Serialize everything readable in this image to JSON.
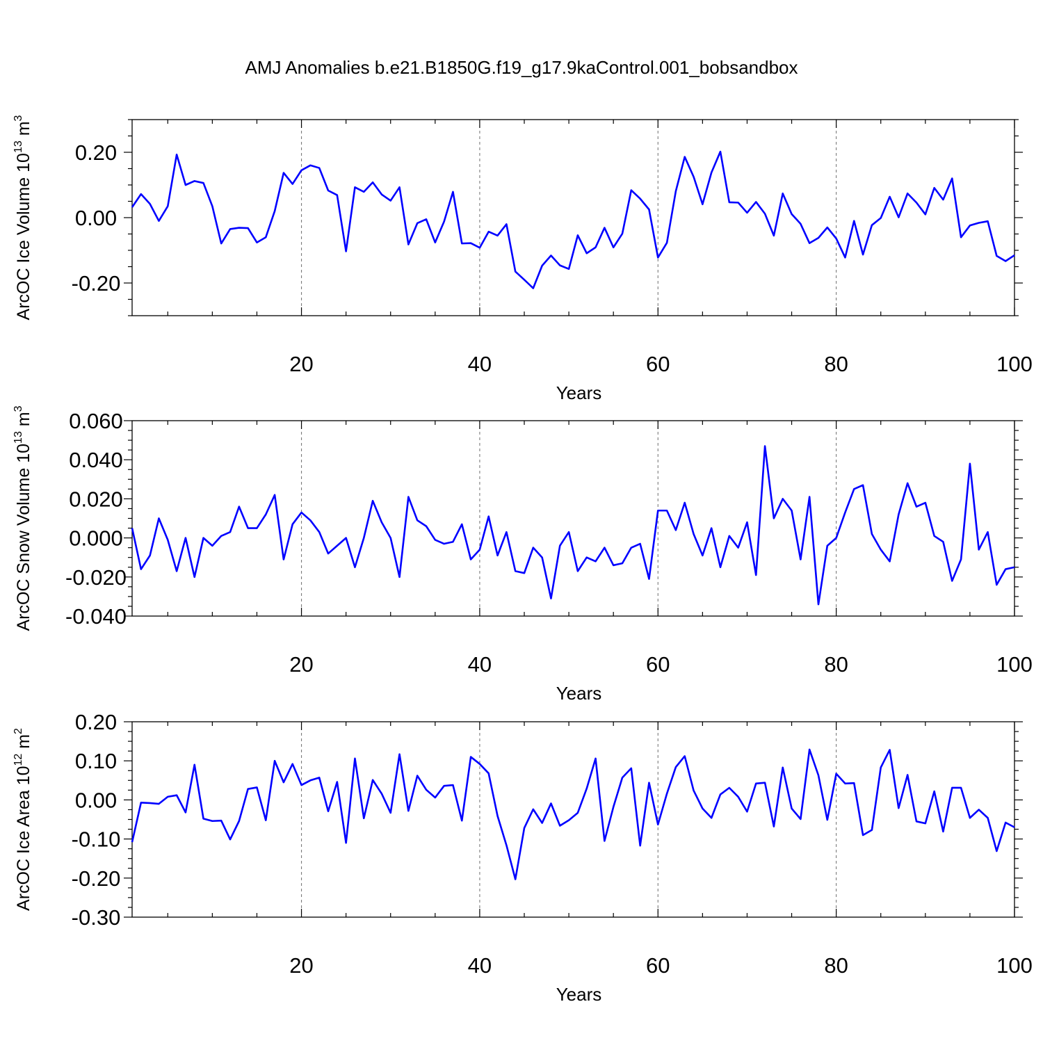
{
  "title": "AMJ Anomalies b.e21.B1850G.f19_g17.9kaControl.001_bobsandbox",
  "colors": {
    "line": "#0000ff",
    "grid": "#7a7a7a"
  },
  "chart_data": [
    {
      "type": "line",
      "ylabel_main": "ArcOC Ice Volume 10",
      "ylabel_exp": "13",
      "ylabel_unit": " m",
      "ylabel_unit_exp": "3",
      "xlabel": "Years",
      "xlim": [
        1,
        100
      ],
      "ylim": [
        -0.3,
        0.3
      ],
      "yticks": [
        -0.2,
        0.0,
        0.2
      ],
      "ytick_labels": [
        "-0.20",
        "0.00",
        "0.20"
      ],
      "xticks": [
        20,
        40,
        60,
        80,
        100
      ],
      "xtick_labels": [
        "20",
        "40",
        "60",
        "80",
        "100"
      ],
      "grid_x": [
        20,
        40,
        60,
        80
      ],
      "x_start": 1,
      "values": [
        0.032,
        0.072,
        0.042,
        -0.01,
        0.035,
        0.193,
        0.1,
        0.112,
        0.106,
        0.035,
        -0.079,
        -0.035,
        -0.031,
        -0.032,
        -0.076,
        -0.06,
        0.02,
        0.137,
        0.103,
        0.145,
        0.16,
        0.152,
        0.083,
        0.069,
        -0.103,
        0.093,
        0.079,
        0.108,
        0.071,
        0.052,
        0.093,
        -0.082,
        -0.017,
        -0.005,
        -0.076,
        -0.012,
        0.079,
        -0.079,
        -0.078,
        -0.092,
        -0.043,
        -0.055,
        -0.02,
        -0.165,
        -0.19,
        -0.216,
        -0.147,
        -0.116,
        -0.146,
        -0.157,
        -0.054,
        -0.109,
        -0.091,
        -0.031,
        -0.091,
        -0.049,
        0.084,
        0.058,
        0.025,
        -0.122,
        -0.077,
        0.081,
        0.186,
        0.125,
        0.041,
        0.138,
        0.202,
        0.047,
        0.046,
        0.015,
        0.048,
        0.012,
        -0.055,
        0.074,
        0.011,
        -0.019,
        -0.078,
        -0.062,
        -0.03,
        -0.064,
        -0.122,
        -0.01,
        -0.113,
        -0.023,
        -0.001,
        0.064,
        0.001,
        0.074,
        0.046,
        0.01,
        0.091,
        0.055,
        0.12,
        -0.06,
        -0.024,
        -0.016,
        -0.011,
        -0.117,
        -0.133,
        -0.115
      ]
    },
    {
      "type": "line",
      "ylabel_main": "ArcOC Snow Volume 10",
      "ylabel_exp": "13",
      "ylabel_unit": " m",
      "ylabel_unit_exp": "3",
      "xlabel": "Years",
      "xlim": [
        1,
        100
      ],
      "ylim": [
        -0.04,
        0.06
      ],
      "yticks": [
        -0.04,
        -0.02,
        0.0,
        0.02,
        0.04,
        0.06
      ],
      "ytick_labels": [
        "-0.040",
        "-0.020",
        "0.000",
        "0.020",
        "0.040",
        "0.060"
      ],
      "xticks": [
        20,
        40,
        60,
        80,
        100
      ],
      "xtick_labels": [
        "20",
        "40",
        "60",
        "80",
        "100"
      ],
      "grid_x": [
        20,
        40,
        60,
        80
      ],
      "x_start": 1,
      "values": [
        0.005,
        -0.016,
        -0.009,
        0.01,
        -0.001,
        -0.017,
        0.0,
        -0.02,
        0.0,
        -0.004,
        0.001,
        0.003,
        0.016,
        0.005,
        0.005,
        0.012,
        0.022,
        -0.011,
        0.007,
        0.013,
        0.009,
        0.003,
        -0.008,
        -0.004,
        0.0,
        -0.015,
        0.0,
        0.019,
        0.008,
        0.0,
        -0.02,
        0.021,
        0.009,
        0.006,
        -0.001,
        -0.003,
        -0.002,
        0.007,
        -0.011,
        -0.006,
        0.011,
        -0.009,
        0.003,
        -0.017,
        -0.018,
        -0.005,
        -0.01,
        -0.031,
        -0.004,
        0.003,
        -0.017,
        -0.01,
        -0.012,
        -0.005,
        -0.014,
        -0.013,
        -0.005,
        -0.003,
        -0.021,
        0.014,
        0.014,
        0.004,
        0.018,
        0.002,
        -0.009,
        0.005,
        -0.015,
        0.001,
        -0.005,
        0.008,
        -0.019,
        0.047,
        0.01,
        0.02,
        0.014,
        -0.011,
        0.021,
        -0.034,
        -0.004,
        0.0,
        0.013,
        0.025,
        0.027,
        0.002,
        -0.006,
        -0.012,
        0.012,
        0.028,
        0.016,
        0.018,
        0.001,
        -0.002,
        -0.022,
        -0.011,
        0.038,
        -0.006,
        0.003,
        -0.024,
        -0.016,
        -0.015
      ]
    },
    {
      "type": "line",
      "ylabel_main": "ArcOC Ice Area 10",
      "ylabel_exp": "12",
      "ylabel_unit": " m",
      "ylabel_unit_exp": "2",
      "xlabel": "Years",
      "xlim": [
        1,
        100
      ],
      "ylim": [
        -0.3,
        0.2
      ],
      "yticks": [
        -0.3,
        -0.2,
        -0.1,
        0.0,
        0.1,
        0.2
      ],
      "ytick_labels": [
        "-0.30",
        "-0.20",
        "-0.10",
        "0.00",
        "0.10",
        "0.20"
      ],
      "xticks": [
        20,
        40,
        60,
        80,
        100
      ],
      "xtick_labels": [
        "20",
        "40",
        "60",
        "80",
        "100"
      ],
      "grid_x": [
        20,
        40,
        60,
        80
      ],
      "x_start": 1,
      "values": [
        -0.108,
        -0.007,
        -0.008,
        -0.01,
        0.008,
        0.012,
        -0.032,
        0.09,
        -0.048,
        -0.054,
        -0.053,
        -0.101,
        -0.054,
        0.028,
        0.032,
        -0.052,
        0.1,
        0.045,
        0.092,
        0.038,
        0.05,
        0.057,
        -0.029,
        0.046,
        -0.11,
        0.106,
        -0.047,
        0.051,
        0.016,
        -0.033,
        0.117,
        -0.028,
        0.062,
        0.026,
        0.006,
        0.036,
        0.038,
        -0.053,
        0.11,
        0.092,
        0.068,
        -0.041,
        -0.116,
        -0.203,
        -0.072,
        -0.024,
        -0.059,
        -0.009,
        -0.066,
        -0.052,
        -0.033,
        0.029,
        0.106,
        -0.105,
        -0.018,
        0.057,
        0.081,
        -0.117,
        0.044,
        -0.063,
        0.016,
        0.084,
        0.112,
        0.024,
        -0.022,
        -0.046,
        0.014,
        0.031,
        0.008,
        -0.03,
        0.042,
        0.044,
        -0.068,
        0.083,
        -0.022,
        -0.049,
        0.129,
        0.063,
        -0.051,
        0.067,
        0.042,
        0.043,
        -0.09,
        -0.077,
        0.083,
        0.128,
        -0.021,
        0.064,
        -0.055,
        -0.06,
        0.022,
        -0.081,
        0.031,
        0.031,
        -0.046,
        -0.025,
        -0.046,
        -0.131,
        -0.058,
        -0.07
      ]
    }
  ]
}
